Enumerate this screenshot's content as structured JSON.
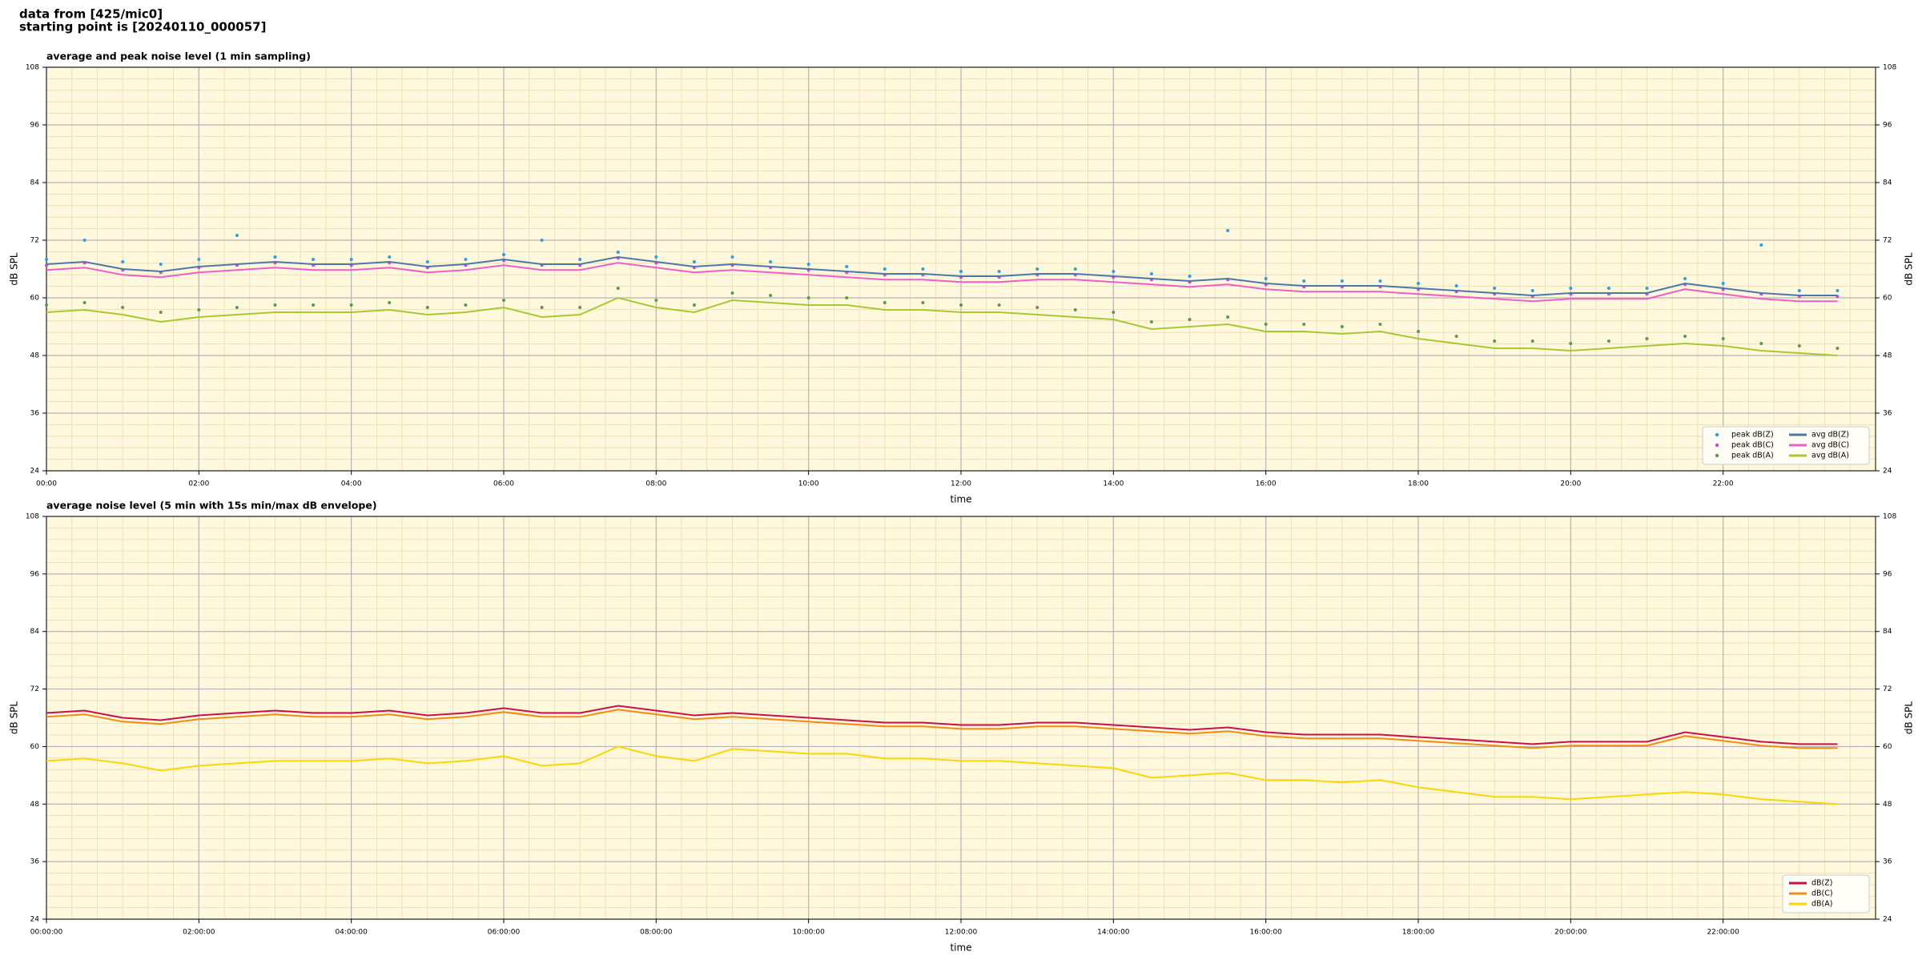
{
  "header": {
    "line1": "data from [425/mic0]",
    "line2": "starting point is [20240110_000057]"
  },
  "chart_data": [
    {
      "type": "line",
      "title": "average and peak noise level (1 min sampling)",
      "x_label": "time",
      "y_label": "dB SPL",
      "xlim": [
        0,
        24
      ],
      "ylim": [
        24,
        108
      ],
      "xticks": [
        {
          "value": 0,
          "label": "00:00"
        },
        {
          "value": 2,
          "label": "02:00"
        },
        {
          "value": 4,
          "label": "04:00"
        },
        {
          "value": 6,
          "label": "06:00"
        },
        {
          "value": 8,
          "label": "08:00"
        },
        {
          "value": 10,
          "label": "10:00"
        },
        {
          "value": 12,
          "label": "12:00"
        },
        {
          "value": 14,
          "label": "14:00"
        },
        {
          "value": 16,
          "label": "16:00"
        },
        {
          "value": 18,
          "label": "18:00"
        },
        {
          "value": 20,
          "label": "20:00"
        },
        {
          "value": 22,
          "label": "22:00"
        }
      ],
      "yticks": [
        24,
        36,
        48,
        60,
        72,
        84,
        96,
        108
      ],
      "grid": true,
      "legend": "lower right",
      "legend_columns": 2,
      "x": [
        0,
        0.5,
        1,
        1.5,
        2,
        2.5,
        3,
        3.5,
        4,
        4.5,
        5,
        5.5,
        6,
        6.5,
        7,
        7.5,
        8,
        8.5,
        9,
        9.5,
        10,
        10.5,
        11,
        11.5,
        12,
        12.5,
        13,
        13.5,
        14,
        14.5,
        15,
        15.5,
        16,
        16.5,
        17,
        17.5,
        18,
        18.5,
        19,
        19.5,
        20,
        20.5,
        21,
        21.5,
        22,
        22.5,
        23,
        23.5
      ],
      "series": [
        {
          "name": "peak dB(Z)",
          "kind": "scatter",
          "color": "#2c9fe0",
          "values": [
            68,
            72,
            67.5,
            67,
            68,
            73,
            68.5,
            68,
            68,
            68.5,
            67.5,
            68,
            69,
            72,
            68,
            69.5,
            68.5,
            67.5,
            68.5,
            67.5,
            67,
            66.5,
            66,
            66,
            65.5,
            65.5,
            66,
            66,
            65.5,
            65,
            64.5,
            74,
            64,
            63.5,
            63.5,
            63.5,
            63,
            62.5,
            62,
            61.5,
            62,
            62,
            62,
            64,
            63,
            71,
            61.5,
            61.5
          ]
        },
        {
          "name": "peak dB(C)",
          "kind": "scatter",
          "color": "#e23ce6",
          "values": [
            66.8,
            67.3,
            65.8,
            65.3,
            66.3,
            66.8,
            67.3,
            66.8,
            66.8,
            67.3,
            66.3,
            66.8,
            67.8,
            66.8,
            66.8,
            68.3,
            67.3,
            66.3,
            66.8,
            66.3,
            65.8,
            65.3,
            64.8,
            64.8,
            64.3,
            64.3,
            64.8,
            64.8,
            64.3,
            63.8,
            63.3,
            63.8,
            62.8,
            62.3,
            62.3,
            62.3,
            61.8,
            61.3,
            60.8,
            60.3,
            60.8,
            60.8,
            60.8,
            62.8,
            61.8,
            60.8,
            60.3,
            60.3
          ]
        },
        {
          "name": "peak dB(A)",
          "kind": "scatter",
          "color": "#5c9a48",
          "values": [
            58.5,
            59,
            58,
            57,
            57.5,
            58,
            58.5,
            58.5,
            58.5,
            59,
            58,
            58.5,
            59.5,
            58,
            58,
            62,
            59.5,
            58.5,
            61,
            60.5,
            60,
            60,
            59,
            59,
            58.5,
            58.5,
            58,
            57.5,
            57,
            55,
            55.5,
            56,
            54.5,
            54.5,
            54,
            54.5,
            53,
            52,
            51,
            51,
            50.5,
            51,
            51.5,
            52,
            51.5,
            50.5,
            50,
            49.5
          ]
        },
        {
          "name": "avg dB(Z)",
          "kind": "line",
          "color": "#4a78a8",
          "values": [
            67,
            67.5,
            66,
            65.5,
            66.5,
            67,
            67.5,
            67,
            67,
            67.5,
            66.5,
            67,
            68,
            67,
            67,
            68.5,
            67.5,
            66.5,
            67,
            66.5,
            66,
            65.5,
            65,
            65,
            64.5,
            64.5,
            65,
            65,
            64.5,
            64,
            63.5,
            64,
            63,
            62.5,
            62.5,
            62.5,
            62,
            61.5,
            61,
            60.5,
            61,
            61,
            61,
            63,
            62,
            61,
            60.5,
            60.5
          ]
        },
        {
          "name": "avg dB(C)",
          "kind": "line",
          "color": "#ee5ec8",
          "values": [
            65.8,
            66.3,
            64.8,
            64.3,
            65.3,
            65.8,
            66.3,
            65.8,
            65.8,
            66.3,
            65.3,
            65.8,
            66.8,
            65.8,
            65.8,
            67.3,
            66.3,
            65.3,
            65.8,
            65.3,
            64.8,
            64.3,
            63.8,
            63.8,
            63.3,
            63.3,
            63.8,
            63.8,
            63.3,
            62.8,
            62.3,
            62.8,
            61.8,
            61.3,
            61.3,
            61.3,
            60.8,
            60.3,
            59.8,
            59.3,
            59.8,
            59.8,
            59.8,
            61.8,
            60.8,
            59.8,
            59.3,
            59.3
          ]
        },
        {
          "name": "avg dB(A)",
          "kind": "line",
          "color": "#a8c832",
          "values": [
            57,
            57.5,
            56.5,
            55,
            56,
            56.5,
            57,
            57,
            57,
            57.5,
            56.5,
            57,
            58,
            56,
            56.5,
            60,
            58,
            57,
            59.5,
            59,
            58.5,
            58.5,
            57.5,
            57.5,
            57,
            57,
            56.5,
            56,
            55.5,
            53.5,
            54,
            54.5,
            53,
            53,
            52.5,
            53,
            51.5,
            50.5,
            49.5,
            49.5,
            49,
            49.5,
            50,
            50.5,
            50,
            49,
            48.5,
            48
          ]
        }
      ]
    },
    {
      "type": "line",
      "title": "average noise level (5 min with 15s min/max dB envelope)",
      "x_label": "time",
      "y_label": "dB SPL",
      "xlim": [
        0,
        24
      ],
      "ylim": [
        24,
        108
      ],
      "xticks": [
        {
          "value": 0,
          "label": "00:00:00"
        },
        {
          "value": 2,
          "label": "02:00:00"
        },
        {
          "value": 4,
          "label": "04:00:00"
        },
        {
          "value": 6,
          "label": "06:00:00"
        },
        {
          "value": 8,
          "label": "08:00:00"
        },
        {
          "value": 10,
          "label": "10:00:00"
        },
        {
          "value": 12,
          "label": "12:00:00"
        },
        {
          "value": 14,
          "label": "14:00:00"
        },
        {
          "value": 16,
          "label": "16:00:00"
        },
        {
          "value": 18,
          "label": "18:00:00"
        },
        {
          "value": 20,
          "label": "20:00:00"
        },
        {
          "value": 22,
          "label": "22:00:00"
        }
      ],
      "yticks": [
        24,
        36,
        48,
        60,
        72,
        84,
        96,
        108
      ],
      "grid": true,
      "legend": "lower right",
      "legend_columns": 1,
      "x": [
        0,
        0.5,
        1,
        1.5,
        2,
        2.5,
        3,
        3.5,
        4,
        4.5,
        5,
        5.5,
        6,
        6.5,
        7,
        7.5,
        8,
        8.5,
        9,
        9.5,
        10,
        10.5,
        11,
        11.5,
        12,
        12.5,
        13,
        13.5,
        14,
        14.5,
        15,
        15.5,
        16,
        16.5,
        17,
        17.5,
        18,
        18.5,
        19,
        19.5,
        20,
        20.5,
        21,
        21.5,
        22,
        22.5,
        23,
        23.5
      ],
      "series": [
        {
          "name": "dB(Z)",
          "kind": "line",
          "color": "#c8104a",
          "values": [
            67,
            67.5,
            66,
            65.5,
            66.5,
            67,
            67.5,
            67,
            67,
            67.5,
            66.5,
            67,
            68,
            67,
            67,
            68.5,
            67.5,
            66.5,
            67,
            66.5,
            66,
            65.5,
            65,
            65,
            64.5,
            64.5,
            65,
            65,
            64.5,
            64,
            63.5,
            64,
            63,
            62.5,
            62.5,
            62.5,
            62,
            61.5,
            61,
            60.5,
            61,
            61,
            61,
            63,
            62,
            61,
            60.5,
            60.5
          ]
        },
        {
          "name": "dB(C)",
          "kind": "line",
          "color": "#f08c14",
          "values": [
            66.2,
            66.7,
            65.2,
            64.7,
            65.7,
            66.2,
            66.7,
            66.2,
            66.2,
            66.7,
            65.7,
            66.2,
            67.2,
            66.2,
            66.2,
            67.7,
            66.7,
            65.7,
            66.2,
            65.7,
            65.2,
            64.7,
            64.2,
            64.2,
            63.7,
            63.7,
            64.2,
            64.2,
            63.7,
            63.2,
            62.7,
            63.2,
            62.2,
            61.7,
            61.7,
            61.7,
            61.2,
            60.7,
            60.2,
            59.7,
            60.2,
            60.2,
            60.2,
            62.2,
            61.2,
            60.2,
            59.7,
            59.7
          ]
        },
        {
          "name": "dB(A)",
          "kind": "line",
          "color": "#f8d800",
          "values": [
            57,
            57.5,
            56.5,
            55,
            56,
            56.5,
            57,
            57,
            57,
            57.5,
            56.5,
            57,
            58,
            56,
            56.5,
            60,
            58,
            57,
            59.5,
            59,
            58.5,
            58.5,
            57.5,
            57.5,
            57,
            57,
            56.5,
            56,
            55.5,
            53.5,
            54,
            54.5,
            53,
            53,
            52.5,
            53,
            51.5,
            50.5,
            49.5,
            49.5,
            49,
            49.5,
            50,
            50.5,
            50,
            49,
            48.5,
            48
          ]
        }
      ]
    }
  ]
}
